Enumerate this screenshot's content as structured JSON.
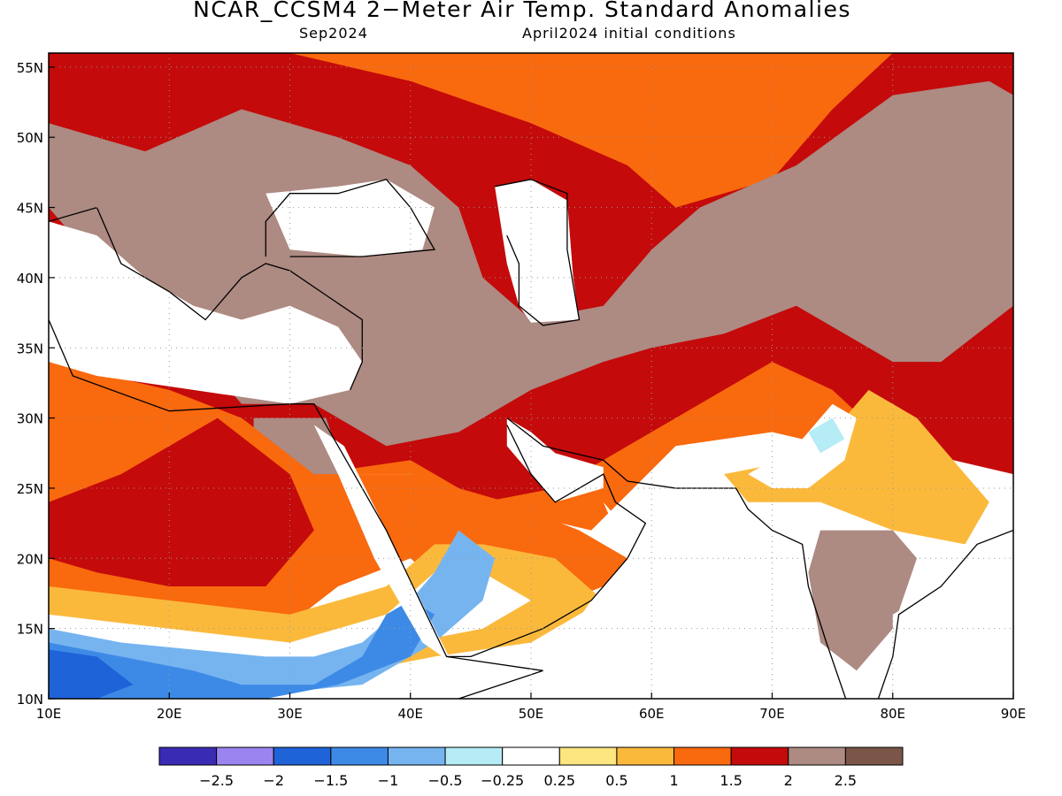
{
  "title": "NCAR_CCSM4 2−Meter Air Temp. Standard Anomalies",
  "valid_month": "Sep2024",
  "init_conditions": "April2024 initial conditions",
  "map": {
    "lon_range": [
      10,
      90
    ],
    "lat_range": [
      10,
      56
    ],
    "lon_ticks": [
      {
        "value": 10,
        "label": "10E"
      },
      {
        "value": 20,
        "label": "20E"
      },
      {
        "value": 30,
        "label": "30E"
      },
      {
        "value": 40,
        "label": "40E"
      },
      {
        "value": 50,
        "label": "50E"
      },
      {
        "value": 60,
        "label": "60E"
      },
      {
        "value": 70,
        "label": "70E"
      },
      {
        "value": 80,
        "label": "80E"
      },
      {
        "value": 90,
        "label": "90E"
      }
    ],
    "lat_ticks": [
      {
        "value": 10,
        "label": "10N"
      },
      {
        "value": 15,
        "label": "15N"
      },
      {
        "value": 20,
        "label": "20N"
      },
      {
        "value": 25,
        "label": "25N"
      },
      {
        "value": 30,
        "label": "30N"
      },
      {
        "value": 35,
        "label": "35N"
      },
      {
        "value": 40,
        "label": "40N"
      },
      {
        "value": 45,
        "label": "45N"
      },
      {
        "value": 50,
        "label": "50N"
      },
      {
        "value": 55,
        "label": "55N"
      }
    ],
    "gridlines": "dotted"
  },
  "colorbar": {
    "colors": [
      "#3a2bb5",
      "#9a84f0",
      "#1f63d9",
      "#3d8ae6",
      "#76b4f0",
      "#b5ecf5",
      "#ffffff",
      "#fde57f",
      "#fbb93c",
      "#f9690e",
      "#c40a0a",
      "#ad8a82",
      "#7a5548"
    ],
    "labels": [
      "−2.5",
      "−2",
      "−1.5",
      "−1",
      "−0.5",
      "−0.25",
      "0.25",
      "0.5",
      "1",
      "1.5",
      "2",
      "2.5"
    ]
  },
  "anomaly_regions": [
    {
      "category": 1.5,
      "color": "#f9690e",
      "polygon": [
        [
          10,
          56
        ],
        [
          90,
          56
        ],
        [
          90,
          30
        ],
        [
          80,
          27
        ],
        [
          70,
          29
        ],
        [
          62,
          28
        ],
        [
          55,
          22
        ],
        [
          50,
          23
        ],
        [
          40,
          26
        ],
        [
          30,
          26
        ],
        [
          20,
          30
        ],
        [
          10,
          33
        ]
      ]
    },
    {
      "category": 2,
      "color": "#c40a0a",
      "polygon": [
        [
          10,
          56
        ],
        [
          30,
          56
        ],
        [
          40,
          54
        ],
        [
          50,
          51
        ],
        [
          58,
          48
        ],
        [
          62,
          45
        ],
        [
          70,
          47
        ],
        [
          75,
          52
        ],
        [
          80,
          56
        ],
        [
          90,
          56
        ],
        [
          90,
          26
        ],
        [
          80,
          28
        ],
        [
          75,
          32
        ],
        [
          70,
          34
        ],
        [
          62,
          30
        ],
        [
          56,
          27
        ],
        [
          52,
          25
        ],
        [
          46,
          24
        ],
        [
          40,
          27
        ],
        [
          32,
          26
        ],
        [
          26,
          30
        ],
        [
          20,
          31
        ],
        [
          10,
          34
        ]
      ]
    },
    {
      "category": 2.5,
      "color": "#ad8a82",
      "polygon": [
        [
          10,
          51
        ],
        [
          18,
          49
        ],
        [
          26,
          52
        ],
        [
          34,
          50
        ],
        [
          40,
          48
        ],
        [
          44,
          45
        ],
        [
          46,
          40
        ],
        [
          50,
          37
        ],
        [
          56,
          38
        ],
        [
          60,
          42
        ],
        [
          64,
          45
        ],
        [
          72,
          48
        ],
        [
          80,
          53
        ],
        [
          88,
          54
        ],
        [
          90,
          53
        ],
        [
          90,
          38
        ],
        [
          84,
          34
        ],
        [
          80,
          34
        ],
        [
          76,
          36
        ],
        [
          72,
          38
        ],
        [
          66,
          36
        ],
        [
          60,
          35
        ],
        [
          56,
          34
        ],
        [
          50,
          32
        ],
        [
          44,
          29
        ],
        [
          38,
          28
        ],
        [
          32,
          31
        ],
        [
          26,
          31
        ],
        [
          22,
          35
        ],
        [
          16,
          39
        ],
        [
          12,
          43
        ],
        [
          10,
          45
        ]
      ]
    },
    {
      "category": 2.5,
      "color": "#ad8a82",
      "polygon": [
        [
          27,
          30
        ],
        [
          33,
          30
        ],
        [
          35,
          25
        ],
        [
          33,
          20
        ],
        [
          30,
          18
        ],
        [
          27,
          23
        ]
      ]
    },
    {
      "category": 2.5,
      "color": "#ad8a82",
      "polygon": [
        [
          74,
          22
        ],
        [
          80,
          22
        ],
        [
          82,
          20
        ],
        [
          80,
          15
        ],
        [
          77,
          12
        ],
        [
          74,
          14
        ],
        [
          73,
          19
        ]
      ]
    },
    {
      "category": 1.5,
      "color": "#f9690e",
      "polygon": [
        [
          10,
          34
        ],
        [
          20,
          32
        ],
        [
          26,
          30
        ],
        [
          32,
          26
        ],
        [
          40,
          26
        ],
        [
          48,
          24
        ],
        [
          54,
          22
        ],
        [
          58,
          20
        ],
        [
          56,
          18
        ],
        [
          50,
          16
        ],
        [
          44,
          17
        ],
        [
          40,
          20
        ],
        [
          34,
          18
        ],
        [
          28,
          14
        ],
        [
          20,
          15
        ],
        [
          10,
          17
        ]
      ]
    },
    {
      "category": 2,
      "color": "#c40a0a",
      "polygon": [
        [
          10,
          24
        ],
        [
          16,
          26
        ],
        [
          24,
          30
        ],
        [
          30,
          26
        ],
        [
          32,
          22
        ],
        [
          28,
          18
        ],
        [
          20,
          18
        ],
        [
          14,
          19
        ],
        [
          10,
          20
        ]
      ]
    },
    {
      "category": 1,
      "color": "#fbb93c",
      "polygon": [
        [
          10,
          18
        ],
        [
          20,
          17
        ],
        [
          30,
          16
        ],
        [
          38,
          18
        ],
        [
          42,
          21
        ],
        [
          46,
          21
        ],
        [
          52,
          20
        ],
        [
          56,
          17
        ],
        [
          50,
          14
        ],
        [
          42,
          13
        ],
        [
          36,
          12
        ],
        [
          28,
          12
        ],
        [
          20,
          13
        ],
        [
          10,
          13
        ]
      ]
    },
    {
      "category": 0.25,
      "color": "#ffffff",
      "polygon": [
        [
          10,
          16
        ],
        [
          20,
          15
        ],
        [
          30,
          14
        ],
        [
          38,
          16
        ],
        [
          42,
          19
        ],
        [
          46,
          19
        ],
        [
          50,
          17
        ],
        [
          46,
          15
        ],
        [
          40,
          14
        ],
        [
          32,
          12
        ],
        [
          22,
          12
        ],
        [
          12,
          12
        ],
        [
          10,
          12.5
        ]
      ]
    },
    {
      "category": -0.5,
      "color": "#76b4f0",
      "polygon": [
        [
          10,
          15
        ],
        [
          16,
          14
        ],
        [
          22,
          13.5
        ],
        [
          28,
          13
        ],
        [
          32,
          13
        ],
        [
          36,
          14
        ],
        [
          40,
          17
        ],
        [
          42,
          19
        ],
        [
          44,
          22
        ],
        [
          47,
          20
        ],
        [
          46,
          17
        ],
        [
          42,
          14
        ],
        [
          36,
          11
        ],
        [
          30,
          10.5
        ],
        [
          10,
          10
        ]
      ]
    },
    {
      "category": -1,
      "color": "#3d8ae6",
      "polygon": [
        [
          10,
          14
        ],
        [
          16,
          13
        ],
        [
          22,
          12
        ],
        [
          26,
          11
        ],
        [
          32,
          11
        ],
        [
          36,
          13
        ],
        [
          38,
          16
        ],
        [
          40,
          17
        ],
        [
          42,
          16
        ],
        [
          40,
          13
        ],
        [
          34,
          11
        ],
        [
          28,
          10
        ],
        [
          10,
          10
        ]
      ]
    },
    {
      "category": -1.5,
      "color": "#1f63d9",
      "polygon": [
        [
          10,
          13.5
        ],
        [
          14,
          13
        ],
        [
          17,
          11
        ],
        [
          14,
          10
        ],
        [
          10,
          10
        ]
      ]
    },
    {
      "category": 1,
      "color": "#fbb93c",
      "polygon": [
        [
          66,
          26
        ],
        [
          72,
          27
        ],
        [
          76,
          30
        ],
        [
          78,
          32
        ],
        [
          82,
          30
        ],
        [
          86,
          26
        ],
        [
          88,
          24
        ],
        [
          86,
          21
        ],
        [
          80,
          22
        ],
        [
          74,
          24
        ],
        [
          68,
          24
        ]
      ]
    },
    {
      "category": 0.25,
      "color": "#ffffff",
      "polygon": [
        [
          68,
          26
        ],
        [
          72,
          28
        ],
        [
          75,
          31
        ],
        [
          77,
          30
        ],
        [
          76,
          27
        ],
        [
          73,
          25
        ],
        [
          70,
          25
        ]
      ]
    },
    {
      "category": -0.25,
      "color": "#b5ecf5",
      "polygon": [
        [
          73,
          29
        ],
        [
          75,
          30
        ],
        [
          76,
          28.5
        ],
        [
          74,
          27.5
        ]
      ]
    }
  ],
  "masked_areas": [
    {
      "name": "Mediterranean",
      "polygon": [
        [
          10,
          44
        ],
        [
          14,
          43
        ],
        [
          18,
          40
        ],
        [
          22,
          38
        ],
        [
          26,
          37
        ],
        [
          30,
          38
        ],
        [
          34,
          36.5
        ],
        [
          36,
          34
        ],
        [
          35,
          32
        ],
        [
          30,
          31
        ],
        [
          22,
          32
        ],
        [
          14,
          33
        ],
        [
          10,
          34
        ]
      ]
    },
    {
      "name": "Black Sea",
      "polygon": [
        [
          28,
          46
        ],
        [
          34,
          46.5
        ],
        [
          38,
          47
        ],
        [
          42,
          45
        ],
        [
          41,
          42
        ],
        [
          36,
          41.5
        ],
        [
          30,
          42
        ]
      ]
    },
    {
      "name": "Caspian Sea",
      "polygon": [
        [
          47,
          46.5
        ],
        [
          50,
          47
        ],
        [
          53,
          45.5
        ],
        [
          53.5,
          40
        ],
        [
          54,
          37
        ],
        [
          50,
          36.8
        ],
        [
          49,
          38
        ],
        [
          48,
          41
        ]
      ]
    },
    {
      "name": "Red Sea",
      "polygon": [
        [
          32,
          29.5
        ],
        [
          34.5,
          28
        ],
        [
          38,
          22
        ],
        [
          42,
          15
        ],
        [
          43.5,
          12.5
        ],
        [
          41,
          14
        ],
        [
          37,
          20
        ],
        [
          34,
          26
        ]
      ]
    },
    {
      "name": "Arabian Sea and Indian Ocean",
      "polygon": [
        [
          56,
          24
        ],
        [
          58,
          22
        ],
        [
          60,
          21
        ],
        [
          62,
          25
        ],
        [
          66,
          25
        ],
        [
          70,
          22
        ],
        [
          72,
          20
        ],
        [
          73,
          16
        ],
        [
          74,
          10
        ],
        [
          44,
          10
        ],
        [
          45,
          12.5
        ],
        [
          51,
          12
        ],
        [
          55,
          17
        ],
        [
          58,
          20
        ]
      ]
    },
    {
      "name": "Bay of Bengal",
      "polygon": [
        [
          80,
          16
        ],
        [
          82,
          17
        ],
        [
          86,
          20
        ],
        [
          88,
          21.5
        ],
        [
          90,
          22
        ],
        [
          90,
          10
        ],
        [
          80,
          10
        ]
      ]
    },
    {
      "name": "Persian Gulf",
      "polygon": [
        [
          48,
          30
        ],
        [
          50,
          29
        ],
        [
          52,
          27.5
        ],
        [
          56,
          26.5
        ],
        [
          56,
          25
        ],
        [
          52,
          24
        ],
        [
          50,
          26
        ],
        [
          48,
          28
        ]
      ]
    }
  ],
  "land_outlines": [
    {
      "name": "Africa-Arabia coast",
      "points": [
        [
          10,
          37
        ],
        [
          12,
          33
        ],
        [
          20,
          30.5
        ],
        [
          30,
          31
        ],
        [
          32,
          31
        ],
        [
          34,
          28
        ],
        [
          38,
          22
        ],
        [
          43,
          13
        ],
        [
          51,
          12
        ],
        [
          44,
          10
        ]
      ]
    },
    {
      "name": "Arabia east coast",
      "points": [
        [
          43,
          13
        ],
        [
          45,
          13
        ],
        [
          51,
          15
        ],
        [
          55,
          17
        ],
        [
          58,
          20
        ],
        [
          59.5,
          22.5
        ],
        [
          57,
          24
        ],
        [
          56,
          26
        ],
        [
          52,
          24
        ],
        [
          50,
          26
        ],
        [
          48,
          29.5
        ]
      ]
    },
    {
      "name": "Iran-Pakistan coast",
      "points": [
        [
          48,
          30
        ],
        [
          51,
          28
        ],
        [
          56,
          27
        ],
        [
          58,
          25.5
        ],
        [
          62,
          25
        ],
        [
          67,
          25
        ],
        [
          68,
          23.5
        ]
      ]
    },
    {
      "name": "India west coast",
      "points": [
        [
          68,
          23.5
        ],
        [
          70,
          22
        ],
        [
          72.5,
          21
        ],
        [
          73,
          18
        ],
        [
          74.5,
          14
        ],
        [
          76.5,
          9
        ]
      ]
    },
    {
      "name": "India east coast",
      "points": [
        [
          78,
          8
        ],
        [
          80,
          13
        ],
        [
          80.5,
          16
        ],
        [
          84,
          18
        ],
        [
          87,
          21
        ],
        [
          90,
          22
        ]
      ]
    },
    {
      "name": "Mediterranean north coast",
      "points": [
        [
          10,
          44
        ],
        [
          14,
          45
        ],
        [
          16,
          41
        ],
        [
          18,
          40
        ],
        [
          20,
          39
        ],
        [
          23,
          37
        ],
        [
          26,
          40
        ],
        [
          28,
          41
        ],
        [
          30,
          40.5
        ],
        [
          36,
          37
        ],
        [
          36,
          34
        ],
        [
          35,
          32
        ]
      ]
    },
    {
      "name": "Black Sea coast",
      "points": [
        [
          28,
          41.5
        ],
        [
          28,
          44
        ],
        [
          30,
          46
        ],
        [
          34,
          46
        ],
        [
          38,
          47
        ],
        [
          40,
          45
        ],
        [
          42,
          42
        ],
        [
          36,
          41.5
        ],
        [
          30,
          41.5
        ]
      ]
    },
    {
      "name": "Caspian coast",
      "points": [
        [
          47,
          46.5
        ],
        [
          50,
          47
        ],
        [
          53,
          46
        ],
        [
          53,
          42
        ],
        [
          54,
          37
        ],
        [
          51,
          36.6
        ],
        [
          49,
          38
        ],
        [
          49,
          41
        ],
        [
          48,
          43
        ]
      ]
    }
  ]
}
